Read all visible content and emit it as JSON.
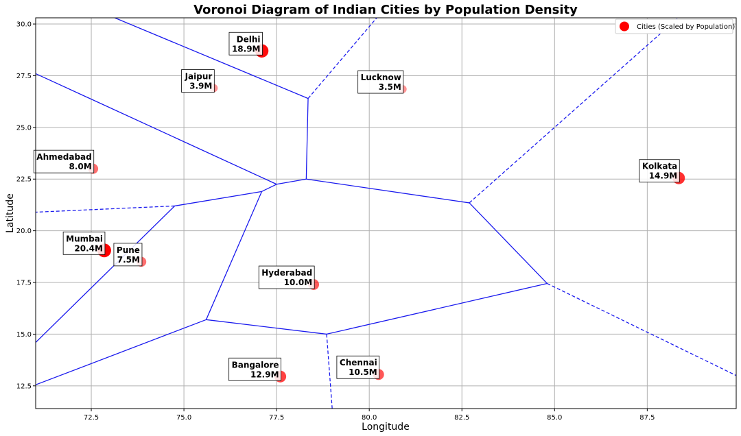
{
  "chart_data": {
    "type": "scatter",
    "title": "Voronoi Diagram of Indian Cities by Population Density",
    "xlabel": "Longitude",
    "ylabel": "Latitude",
    "xlim": [
      71.0,
      89.9
    ],
    "ylim": [
      11.4,
      30.3
    ],
    "xticks": [
      72.5,
      75.0,
      77.5,
      80.0,
      82.5,
      85.0,
      87.5
    ],
    "xtick_labels": [
      "72.5",
      "75.0",
      "77.5",
      "80.0",
      "82.5",
      "85.0",
      "87.5"
    ],
    "yticks": [
      12.5,
      15.0,
      17.5,
      20.0,
      22.5,
      25.0,
      27.5,
      30.0
    ],
    "ytick_labels": [
      "12.5",
      "15.0",
      "17.5",
      "20.0",
      "22.5",
      "25.0",
      "27.5",
      "30.0"
    ],
    "grid": true,
    "legend": {
      "label": "Cities (Scaled by Population)",
      "position": "top-right"
    },
    "colors": {
      "points": "#ff0000",
      "edges": "#1a1aee"
    },
    "cities": [
      {
        "name": "Delhi",
        "pop_label": "18.9M",
        "population": 18.9,
        "lon": 77.1,
        "lat": 28.7
      },
      {
        "name": "Jaipur",
        "pop_label": "3.9M",
        "population": 3.9,
        "lon": 75.8,
        "lat": 26.9
      },
      {
        "name": "Lucknow",
        "pop_label": "3.5M",
        "population": 3.5,
        "lon": 80.9,
        "lat": 26.85
      },
      {
        "name": "Ahmedabad",
        "pop_label": "8.0M",
        "population": 8.0,
        "lon": 72.55,
        "lat": 23.0
      },
      {
        "name": "Kolkata",
        "pop_label": "14.9M",
        "population": 14.9,
        "lon": 88.35,
        "lat": 22.55
      },
      {
        "name": "Mumbai",
        "pop_label": "20.4M",
        "population": 20.4,
        "lon": 72.85,
        "lat": 19.05
      },
      {
        "name": "Pune",
        "pop_label": "7.5M",
        "population": 7.5,
        "lon": 73.85,
        "lat": 18.5
      },
      {
        "name": "Hyderabad",
        "pop_label": "10.0M",
        "population": 10.0,
        "lon": 78.5,
        "lat": 17.4
      },
      {
        "name": "Bangalore",
        "pop_label": "12.9M",
        "population": 12.9,
        "lon": 77.6,
        "lat": 12.95
      },
      {
        "name": "Chennai",
        "pop_label": "10.5M",
        "population": 10.5,
        "lon": 80.25,
        "lat": 13.05
      }
    ],
    "edges_solid": [
      [
        [
          73.0,
          30.4
        ],
        [
          78.35,
          26.4
        ]
      ],
      [
        [
          78.35,
          26.4
        ],
        [
          78.3,
          22.5
        ]
      ],
      [
        [
          78.3,
          22.5
        ],
        [
          77.5,
          22.25
        ]
      ],
      [
        [
          77.5,
          22.25
        ],
        [
          71.0,
          27.6
        ]
      ],
      [
        [
          77.5,
          22.25
        ],
        [
          77.1,
          21.9
        ]
      ],
      [
        [
          77.1,
          21.9
        ],
        [
          74.75,
          21.2
        ]
      ],
      [
        [
          74.75,
          21.2
        ],
        [
          71.0,
          14.6
        ]
      ],
      [
        [
          77.1,
          21.9
        ],
        [
          75.6,
          15.7
        ]
      ],
      [
        [
          75.6,
          15.7
        ],
        [
          71.0,
          12.55
        ]
      ],
      [
        [
          75.6,
          15.7
        ],
        [
          78.85,
          15.0
        ]
      ],
      [
        [
          78.85,
          15.0
        ],
        [
          84.8,
          17.45
        ]
      ],
      [
        [
          84.8,
          17.45
        ],
        [
          82.7,
          21.35
        ]
      ],
      [
        [
          82.7,
          21.35
        ],
        [
          78.3,
          22.5
        ]
      ]
    ],
    "edges_dashed": [
      [
        [
          78.35,
          26.4
        ],
        [
          80.25,
          30.4
        ]
      ],
      [
        [
          82.7,
          21.35
        ],
        [
          88.4,
          30.4
        ]
      ],
      [
        [
          84.8,
          17.45
        ],
        [
          89.9,
          13.0
        ]
      ],
      [
        [
          74.75,
          21.2
        ],
        [
          71.0,
          20.9
        ]
      ],
      [
        [
          78.85,
          15.0
        ],
        [
          79.0,
          11.4
        ]
      ]
    ]
  }
}
